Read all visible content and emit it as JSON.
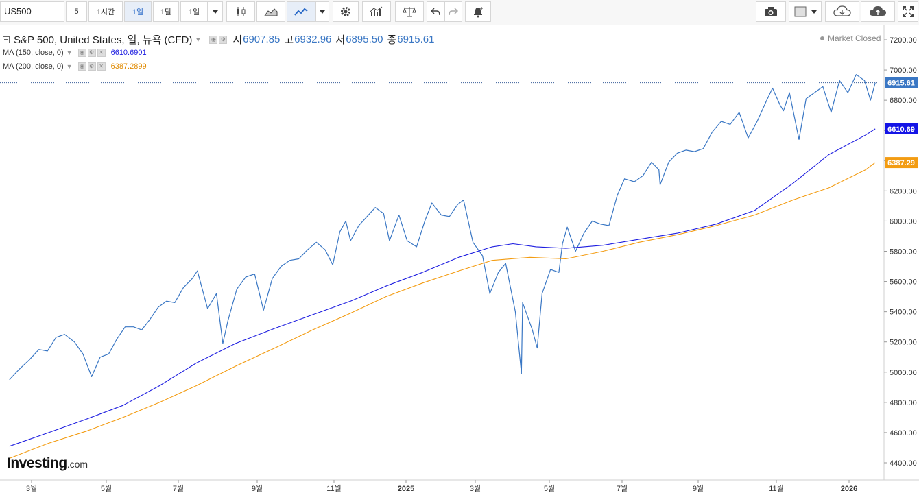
{
  "toolbar": {
    "symbol": "US500",
    "interval_5": "5",
    "interval_1h": "1시간",
    "interval_1d": "1일",
    "interval_1mo": "1달",
    "range": "1일",
    "buttons": [
      "candlestick-icon",
      "mountain-icon",
      "line-chart-icon",
      "dropdown-icon",
      "gear-icon",
      "bar-indicator-icon",
      "scale-icon",
      "undo-icon",
      "redo-icon",
      "alert-icon",
      "camera-icon",
      "color-box-icon",
      "cloud-download-icon",
      "cloud-upload-icon",
      "fullscreen-icon"
    ]
  },
  "legend": {
    "title": "S&P 500, United States, 일, 뉴욕 (CFD)",
    "open_label": "시",
    "open": "6907.85",
    "high_label": "고",
    "high": "6932.96",
    "low_label": "저",
    "low": "6895.50",
    "close_label": "종",
    "close": "6915.61",
    "ma150_label": "MA (150, close, 0)",
    "ma150_value": "6610.6901",
    "ma200_label": "MA (200, close, 0)",
    "ma200_value": "6387.2899",
    "status": "Market Closed"
  },
  "brand": {
    "name": "Investing",
    "suffix": ".com"
  },
  "colors": {
    "price": "#3a77c4",
    "ma150": "#1e1ee0",
    "ma200": "#f39c12",
    "grid": "#eeeeee"
  },
  "chart_data": {
    "type": "line",
    "title": "S&P 500, United States, 일, 뉴욕 (CFD)",
    "ylim": [
      4300,
      7300
    ],
    "y_ticks": [
      "7200.00",
      "7000.00",
      "6800.00",
      "6600.00",
      "6400.00",
      "6200.00",
      "6000.00",
      "5800.00",
      "5600.00",
      "5400.00",
      "5200.00",
      "5000.00",
      "4800.00",
      "4600.00",
      "4400.00"
    ],
    "x_ticks": [
      "3월",
      "5월",
      "7월",
      "9월",
      "11월",
      "2025",
      "3월",
      "5월",
      "7월",
      "9월",
      "11월",
      "2026"
    ],
    "x_tick_bold": [
      "2025",
      "2026"
    ],
    "last_labels": {
      "price": "6915.61",
      "ma150": "6610.69",
      "ma200": "6387.29"
    },
    "series": [
      {
        "name": "S&P 500",
        "points": [
          [
            "2024-02-12",
            4950
          ],
          [
            "2024-02-20",
            5020
          ],
          [
            "2024-02-28",
            5080
          ],
          [
            "2024-03-07",
            5150
          ],
          [
            "2024-03-14",
            5140
          ],
          [
            "2024-03-21",
            5230
          ],
          [
            "2024-03-28",
            5250
          ],
          [
            "2024-04-05",
            5200
          ],
          [
            "2024-04-12",
            5120
          ],
          [
            "2024-04-19",
            4970
          ],
          [
            "2024-04-26",
            5100
          ],
          [
            "2024-05-03",
            5120
          ],
          [
            "2024-05-10",
            5220
          ],
          [
            "2024-05-17",
            5300
          ],
          [
            "2024-05-24",
            5300
          ],
          [
            "2024-05-31",
            5280
          ],
          [
            "2024-06-07",
            5350
          ],
          [
            "2024-06-14",
            5430
          ],
          [
            "2024-06-21",
            5470
          ],
          [
            "2024-06-28",
            5460
          ],
          [
            "2024-07-05",
            5560
          ],
          [
            "2024-07-12",
            5620
          ],
          [
            "2024-07-16",
            5670
          ],
          [
            "2024-07-24",
            5420
          ],
          [
            "2024-07-31",
            5520
          ],
          [
            "2024-08-05",
            5190
          ],
          [
            "2024-08-09",
            5340
          ],
          [
            "2024-08-16",
            5550
          ],
          [
            "2024-08-23",
            5630
          ],
          [
            "2024-08-30",
            5650
          ],
          [
            "2024-09-06",
            5410
          ],
          [
            "2024-09-13",
            5620
          ],
          [
            "2024-09-20",
            5700
          ],
          [
            "2024-09-27",
            5740
          ],
          [
            "2024-10-04",
            5750
          ],
          [
            "2024-10-11",
            5810
          ],
          [
            "2024-10-18",
            5860
          ],
          [
            "2024-10-25",
            5810
          ],
          [
            "2024-10-31",
            5710
          ],
          [
            "2024-11-06",
            5930
          ],
          [
            "2024-11-11",
            6000
          ],
          [
            "2024-11-15",
            5870
          ],
          [
            "2024-11-22",
            5970
          ],
          [
            "2024-11-29",
            6030
          ],
          [
            "2024-12-06",
            6090
          ],
          [
            "2024-12-13",
            6050
          ],
          [
            "2024-12-18",
            5870
          ],
          [
            "2024-12-26",
            6040
          ],
          [
            "2025-01-02",
            5870
          ],
          [
            "2025-01-10",
            5830
          ],
          [
            "2025-01-17",
            6000
          ],
          [
            "2025-01-23",
            6120
          ],
          [
            "2025-01-31",
            6040
          ],
          [
            "2025-02-07",
            6030
          ],
          [
            "2025-02-14",
            6110
          ],
          [
            "2025-02-19",
            6140
          ],
          [
            "2025-02-27",
            5860
          ],
          [
            "2025-03-07",
            5770
          ],
          [
            "2025-03-13",
            5520
          ],
          [
            "2025-03-20",
            5660
          ],
          [
            "2025-03-26",
            5720
          ],
          [
            "2025-04-03",
            5400
          ],
          [
            "2025-04-08",
            4990
          ],
          [
            "2025-04-09",
            5460
          ],
          [
            "2025-04-17",
            5280
          ],
          [
            "2025-04-21",
            5160
          ],
          [
            "2025-04-25",
            5520
          ],
          [
            "2025-05-02",
            5680
          ],
          [
            "2025-05-09",
            5660
          ],
          [
            "2025-05-12",
            5850
          ],
          [
            "2025-05-16",
            5960
          ],
          [
            "2025-05-23",
            5800
          ],
          [
            "2025-05-30",
            5920
          ],
          [
            "2025-06-06",
            6000
          ],
          [
            "2025-06-13",
            5980
          ],
          [
            "2025-06-20",
            5970
          ],
          [
            "2025-06-27",
            6170
          ],
          [
            "2025-07-03",
            6280
          ],
          [
            "2025-07-11",
            6260
          ],
          [
            "2025-07-18",
            6300
          ],
          [
            "2025-07-25",
            6390
          ],
          [
            "2025-07-31",
            6340
          ],
          [
            "2025-08-01",
            6240
          ],
          [
            "2025-08-08",
            6390
          ],
          [
            "2025-08-15",
            6450
          ],
          [
            "2025-08-22",
            6470
          ],
          [
            "2025-08-29",
            6460
          ],
          [
            "2025-09-05",
            6480
          ],
          [
            "2025-09-12",
            6590
          ],
          [
            "2025-09-19",
            6660
          ],
          [
            "2025-09-26",
            6640
          ],
          [
            "2025-10-03",
            6720
          ],
          [
            "2025-10-10",
            6550
          ],
          [
            "2025-10-17",
            6660
          ],
          [
            "2025-10-24",
            6790
          ],
          [
            "2025-10-29",
            6880
          ],
          [
            "2025-11-04",
            6770
          ],
          [
            "2025-11-07",
            6730
          ],
          [
            "2025-11-12",
            6850
          ],
          [
            "2025-11-20",
            6540
          ],
          [
            "2025-11-26",
            6810
          ],
          [
            "2025-12-03",
            6850
          ],
          [
            "2025-12-10",
            6890
          ],
          [
            "2025-12-17",
            6720
          ],
          [
            "2025-12-24",
            6930
          ],
          [
            "2025-12-31",
            6850
          ],
          [
            "2026-01-07",
            6970
          ],
          [
            "2026-01-14",
            6930
          ],
          [
            "2026-01-19",
            6800
          ],
          [
            "2026-01-23",
            6915.61
          ]
        ]
      },
      {
        "name": "MA (150, close, 0)",
        "points": [
          [
            "2024-02-12",
            4510
          ],
          [
            "2024-03-15",
            4600
          ],
          [
            "2024-04-15",
            4690
          ],
          [
            "2024-05-15",
            4780
          ],
          [
            "2024-06-15",
            4910
          ],
          [
            "2024-07-15",
            5060
          ],
          [
            "2024-08-15",
            5190
          ],
          [
            "2024-09-15",
            5290
          ],
          [
            "2024-10-15",
            5380
          ],
          [
            "2024-11-15",
            5470
          ],
          [
            "2024-12-15",
            5570
          ],
          [
            "2025-01-15",
            5660
          ],
          [
            "2025-02-15",
            5760
          ],
          [
            "2025-03-15",
            5830
          ],
          [
            "2025-04-01",
            5850
          ],
          [
            "2025-04-20",
            5830
          ],
          [
            "2025-05-15",
            5820
          ],
          [
            "2025-06-15",
            5840
          ],
          [
            "2025-07-15",
            5880
          ],
          [
            "2025-08-15",
            5920
          ],
          [
            "2025-09-15",
            5980
          ],
          [
            "2025-10-15",
            6070
          ],
          [
            "2025-11-15",
            6250
          ],
          [
            "2025-12-15",
            6440
          ],
          [
            "2026-01-15",
            6570
          ],
          [
            "2026-01-23",
            6610.69
          ]
        ]
      },
      {
        "name": "MA (200, close, 0)",
        "points": [
          [
            "2024-02-12",
            4430
          ],
          [
            "2024-03-15",
            4530
          ],
          [
            "2024-04-15",
            4610
          ],
          [
            "2024-05-15",
            4700
          ],
          [
            "2024-06-15",
            4800
          ],
          [
            "2024-07-15",
            4910
          ],
          [
            "2024-08-15",
            5040
          ],
          [
            "2024-09-15",
            5160
          ],
          [
            "2024-10-15",
            5280
          ],
          [
            "2024-11-15",
            5390
          ],
          [
            "2024-12-15",
            5500
          ],
          [
            "2025-01-15",
            5590
          ],
          [
            "2025-02-15",
            5670
          ],
          [
            "2025-03-15",
            5740
          ],
          [
            "2025-04-15",
            5760
          ],
          [
            "2025-05-15",
            5750
          ],
          [
            "2025-06-15",
            5800
          ],
          [
            "2025-07-15",
            5860
          ],
          [
            "2025-08-15",
            5910
          ],
          [
            "2025-09-15",
            5970
          ],
          [
            "2025-10-15",
            6040
          ],
          [
            "2025-11-15",
            6140
          ],
          [
            "2025-12-15",
            6220
          ],
          [
            "2026-01-15",
            6340
          ],
          [
            "2026-01-23",
            6387.29
          ]
        ]
      }
    ]
  }
}
